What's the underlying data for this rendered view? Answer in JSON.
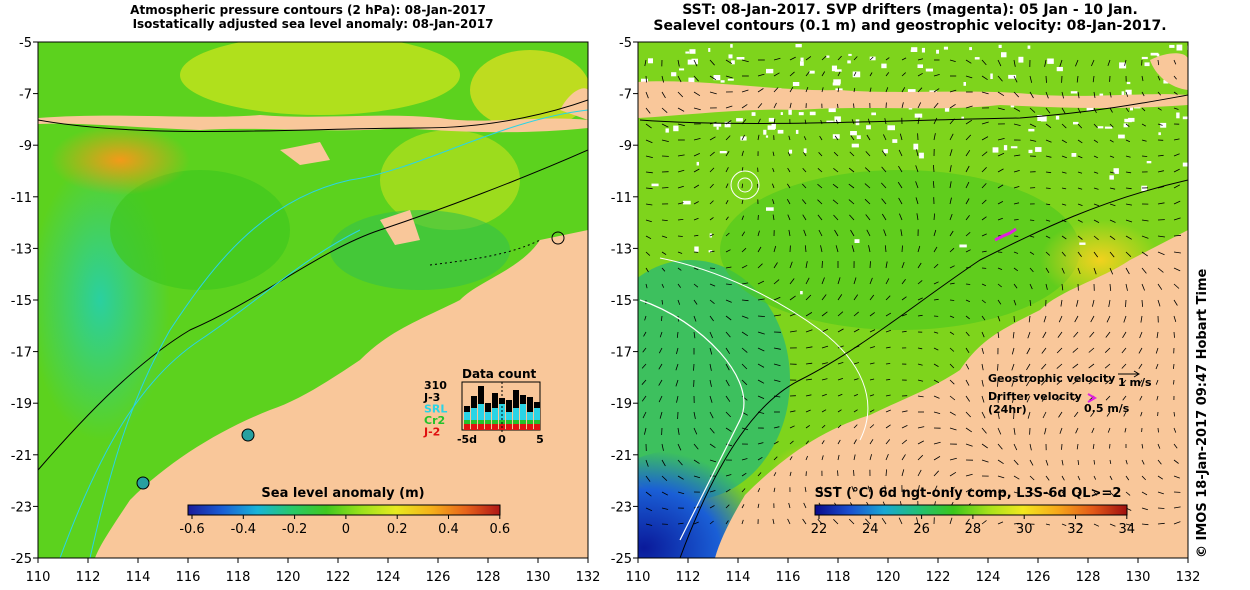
{
  "left_panel": {
    "title_line1": "Atmospheric pressure contours (2 hPa): 08-Jan-2017",
    "title_line2": "Isostatically adjusted sea level anomaly: 08-Jan-2017",
    "colorbar_title": "Sea level anomaly (m)",
    "colorbar_ticks": [
      "-0.6",
      "-0.4",
      "-0.2",
      "0",
      "0.2",
      "0.4",
      "0.6"
    ],
    "data_count": {
      "title": "Data count",
      "total": "310",
      "legend": [
        {
          "label": "J-3",
          "color": "#000000"
        },
        {
          "label": "SRL",
          "color": "#2ad4e6"
        },
        {
          "label": "Cr2",
          "color": "#22c22a"
        },
        {
          "label": "J-2",
          "color": "#e01010"
        }
      ],
      "xticks": [
        "-5d",
        "0",
        "5"
      ]
    }
  },
  "right_panel": {
    "title_line1": "SST: 08-Jan-2017. SVP drifters (magenta): 05 Jan - 10 Jan.",
    "title_line2": "Sealevel contours (0.1 m) and geostrophic velocity: 08-Jan-2017.",
    "colorbar_title": "SST (°C) 6d ngt-only comp, L3S-6d QL>=2",
    "colorbar_ticks": [
      "22",
      "24",
      "26",
      "28",
      "30",
      "32",
      "34"
    ],
    "legend": {
      "geo_label": "Geostrophic velocity",
      "geo_scale": "1 m/s",
      "drifter_label": "Drifter velocity",
      "drifter_sub": "(24hr)",
      "drifter_scale": "0.5 m/s"
    }
  },
  "axes": {
    "x_ticks": [
      "110",
      "112",
      "114",
      "116",
      "118",
      "120",
      "122",
      "124",
      "126",
      "128",
      "130",
      "132"
    ],
    "y_ticks": [
      "-5",
      "-7",
      "-9",
      "-11",
      "-13",
      "-15",
      "-17",
      "-19",
      "-21",
      "-23",
      "-25"
    ]
  },
  "credit": "© IMOS 18-Jan-2017 09:47 Hobart Time",
  "colors": {
    "land": "#f9c79a",
    "sla_ramp": [
      "#1b1b9a",
      "#1a5fd6",
      "#18b4d8",
      "#27c96a",
      "#40c81e",
      "#9be21c",
      "#e8ea20",
      "#f5b21a",
      "#e8641a",
      "#b01616"
    ],
    "sst_ramp": [
      "#0a0a8a",
      "#1a4fd0",
      "#1aa8d4",
      "#22c074",
      "#3cc61c",
      "#a6e21c",
      "#f2e81e",
      "#f6a81a",
      "#e45a18",
      "#a01010"
    ]
  }
}
